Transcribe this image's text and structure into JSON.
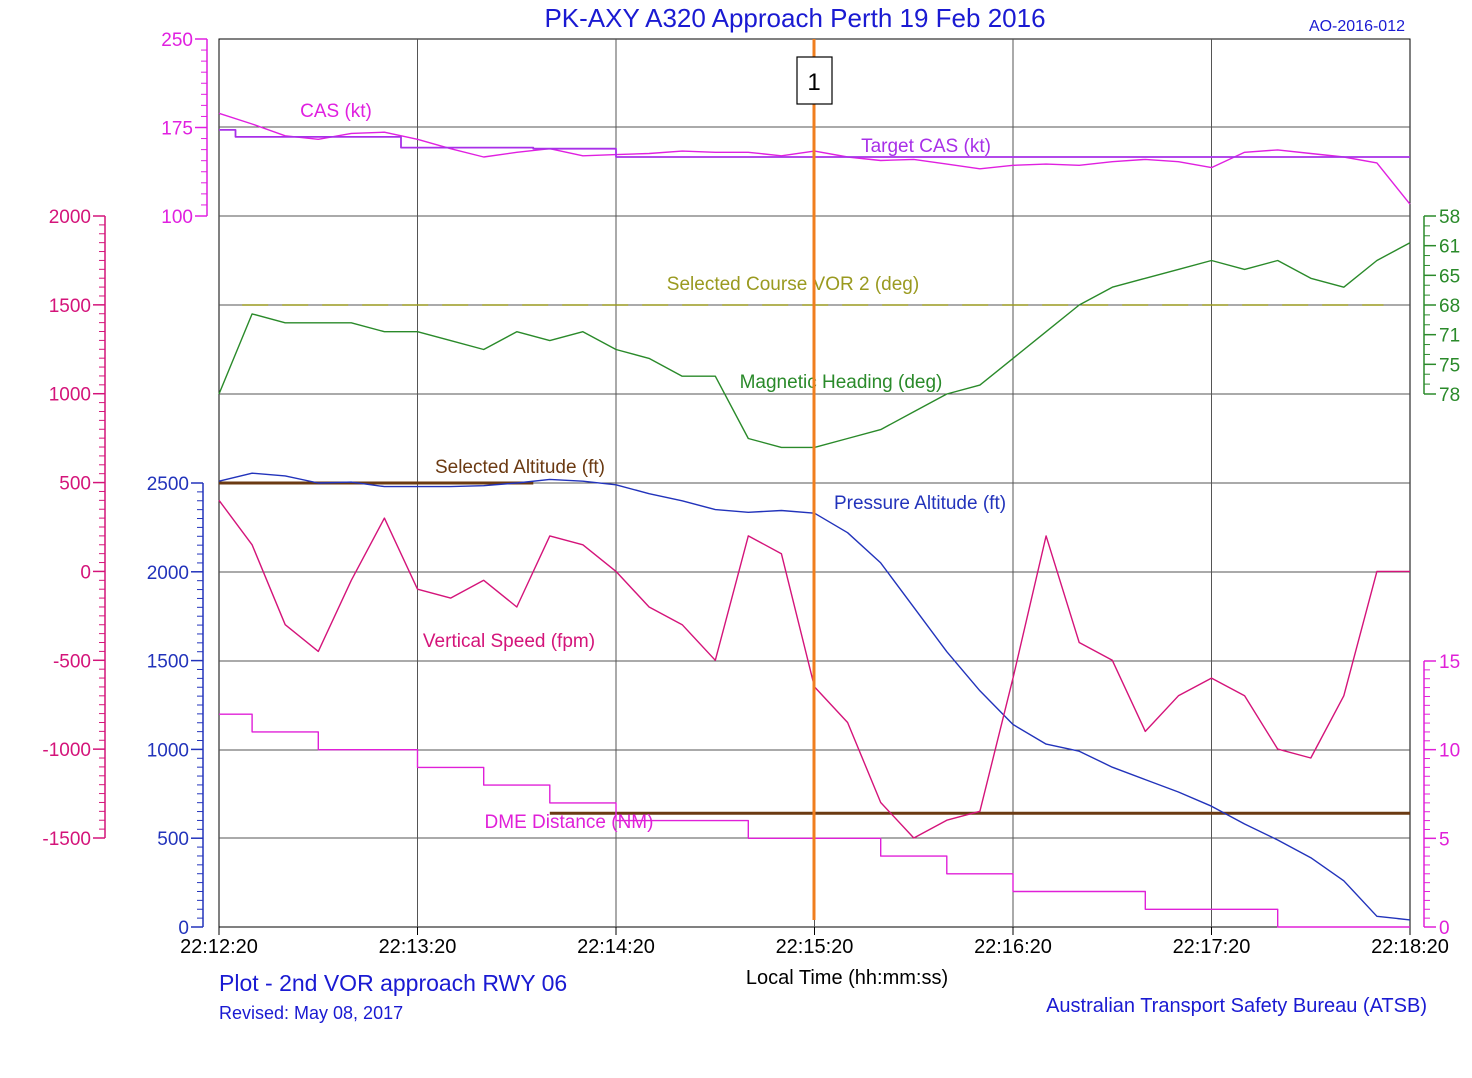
{
  "header": {
    "title": "PK-AXY  A320 Approach Perth 19 Feb 2016",
    "report_id": "AO-2016-012",
    "marker_label": "1"
  },
  "footer": {
    "plot_caption": "Plot - 2nd VOR approach RWY 06",
    "revised": "Revised: May 08, 2017",
    "xaxis_label": "Local Time (hh:mm:ss)",
    "agency": "Australian Transport Safety Bureau (ATSB)"
  },
  "colors": {
    "title_blue": "#1a1ad2",
    "cas": "#e020e0",
    "target_cas": "#a830e8",
    "course": "#9a9a20",
    "heading": "#2a8a2a",
    "sel_alt": "#6b3a12",
    "press_alt": "#2233bb",
    "vs": "#d4147a",
    "dme": "#e020d8",
    "marker": "#f07e1e",
    "grid": "#000000"
  },
  "chart_data": {
    "type": "line",
    "x_ticks": [
      "22:12:20",
      "22:13:20",
      "22:14:20",
      "22:15:20",
      "22:16:20",
      "22:17:20",
      "22:18:20"
    ],
    "xlim": [
      "22:12:20",
      "22:18:20"
    ],
    "marker_time": "22:15:20",
    "axes": {
      "cas": {
        "ticks": [
          "250",
          "175",
          "100"
        ],
        "ylim": [
          100,
          250
        ],
        "color": "#e020e0"
      },
      "vs": {
        "ticks": [
          "2000",
          "1500",
          "1000",
          "500",
          "0",
          "-500",
          "-1000",
          "-1500"
        ],
        "ylim": [
          -1500,
          2000
        ],
        "color": "#d4147a"
      },
      "altitude": {
        "ticks": [
          "2500",
          "2000",
          "1500",
          "1000",
          "500",
          "0"
        ],
        "ylim": [
          0,
          2500
        ],
        "color": "#2233bb"
      },
      "heading": {
        "ticks": [
          "58",
          "61",
          "65",
          "68",
          "71",
          "75",
          "78"
        ],
        "ylim": [
          58,
          78
        ],
        "color": "#2a8a2a"
      },
      "dme": {
        "ticks": [
          "15",
          "10",
          "5",
          "0"
        ],
        "ylim": [
          0,
          15
        ],
        "color": "#e020d8"
      }
    },
    "series": [
      {
        "name": "CAS (kt)",
        "axis": "cas",
        "x": [
          "22:12:20",
          "22:12:30",
          "22:12:40",
          "22:12:50",
          "22:13:00",
          "22:13:10",
          "22:13:20",
          "22:13:30",
          "22:13:40",
          "22:13:50",
          "22:14:00",
          "22:14:10",
          "22:14:20",
          "22:14:30",
          "22:14:40",
          "22:14:50",
          "22:15:00",
          "22:15:10",
          "22:15:20",
          "22:15:30",
          "22:15:40",
          "22:15:50",
          "22:16:00",
          "22:16:10",
          "22:16:20",
          "22:16:30",
          "22:16:40",
          "22:16:50",
          "22:17:00",
          "22:17:10",
          "22:17:20",
          "22:17:30",
          "22:17:40",
          "22:17:50",
          "22:18:00",
          "22:18:10",
          "22:18:20"
        ],
        "values": [
          187,
          178,
          168,
          165,
          170,
          171,
          165,
          157,
          150,
          154,
          157,
          151,
          152,
          153,
          155,
          154,
          154,
          151,
          155,
          150,
          147,
          148,
          144,
          140,
          143,
          144,
          143,
          146,
          148,
          146,
          141,
          154,
          156,
          153,
          150,
          145,
          110
        ]
      },
      {
        "name": "Target CAS (kt)",
        "axis": "cas",
        "step": true,
        "x": [
          "22:12:20",
          "22:12:25",
          "22:12:25",
          "22:13:15",
          "22:13:15",
          "22:13:55",
          "22:13:55",
          "22:14:20",
          "22:14:20",
          "22:18:20"
        ],
        "values": [
          173,
          173,
          167,
          167,
          158,
          158,
          157,
          157,
          150,
          150
        ]
      },
      {
        "name": "Selected Course VOR 2 (deg)",
        "axis": "heading",
        "dashed": true,
        "x": [
          "22:12:27",
          "22:18:12"
        ],
        "values": [
          68,
          68
        ]
      },
      {
        "name": "Magnetic Heading (deg)",
        "axis": "heading",
        "x": [
          "22:12:20",
          "22:12:30",
          "22:12:40",
          "22:12:50",
          "22:13:00",
          "22:13:10",
          "22:13:20",
          "22:13:30",
          "22:13:40",
          "22:13:50",
          "22:14:00",
          "22:14:10",
          "22:14:20",
          "22:14:30",
          "22:14:40",
          "22:14:50",
          "22:15:00",
          "22:15:10",
          "22:15:20",
          "22:15:30",
          "22:15:40",
          "22:15:50",
          "22:16:00",
          "22:16:10",
          "22:16:20",
          "22:16:30",
          "22:16:40",
          "22:16:50",
          "22:17:00",
          "22:17:10",
          "22:17:20",
          "22:17:30",
          "22:17:40",
          "22:17:50",
          "22:18:00",
          "22:18:10",
          "22:18:20"
        ],
        "values": [
          78,
          69,
          70,
          70,
          70,
          71,
          71,
          72,
          73,
          71,
          72,
          71,
          73,
          74,
          76,
          76,
          83,
          84,
          84,
          83,
          82,
          80,
          78,
          77,
          74,
          71,
          68,
          66,
          65,
          64,
          63,
          64,
          63,
          65,
          66,
          63,
          61
        ]
      },
      {
        "name": "Selected Altitude (ft)",
        "axis": "altitude",
        "segments": true,
        "x": [
          "22:12:20",
          "22:13:55"
        ],
        "values": [
          2500,
          2500
        ],
        "x2": [
          "22:14:00",
          "22:18:20"
        ],
        "values2": [
          640,
          640
        ]
      },
      {
        "name": "Pressure Altitude (ft)",
        "axis": "altitude",
        "x": [
          "22:12:20",
          "22:12:30",
          "22:12:40",
          "22:12:50",
          "22:13:00",
          "22:13:10",
          "22:13:20",
          "22:13:30",
          "22:13:40",
          "22:13:50",
          "22:14:00",
          "22:14:10",
          "22:14:20",
          "22:14:30",
          "22:14:40",
          "22:14:50",
          "22:15:00",
          "22:15:10",
          "22:15:20",
          "22:15:30",
          "22:15:40",
          "22:15:50",
          "22:16:00",
          "22:16:10",
          "22:16:20",
          "22:16:30",
          "22:16:40",
          "22:16:50",
          "22:17:00",
          "22:17:10",
          "22:17:20",
          "22:17:30",
          "22:17:40",
          "22:17:50",
          "22:18:00",
          "22:18:10",
          "22:18:20"
        ],
        "values": [
          2510,
          2555,
          2540,
          2500,
          2505,
          2480,
          2480,
          2480,
          2485,
          2500,
          2520,
          2510,
          2490,
          2440,
          2400,
          2350,
          2335,
          2345,
          2330,
          2220,
          2050,
          1800,
          1550,
          1330,
          1140,
          1030,
          990,
          900,
          830,
          760,
          680,
          580,
          490,
          390,
          260,
          60,
          40
        ]
      },
      {
        "name": "Vertical Speed (fpm)",
        "axis": "vs",
        "x": [
          "22:12:20",
          "22:12:30",
          "22:12:40",
          "22:12:50",
          "22:13:00",
          "22:13:10",
          "22:13:20",
          "22:13:30",
          "22:13:40",
          "22:13:50",
          "22:14:00",
          "22:14:10",
          "22:14:20",
          "22:14:30",
          "22:14:40",
          "22:14:50",
          "22:15:00",
          "22:15:10",
          "22:15:20",
          "22:15:30",
          "22:15:40",
          "22:15:50",
          "22:16:00",
          "22:16:10",
          "22:16:20",
          "22:16:30",
          "22:16:40",
          "22:16:50",
          "22:17:00",
          "22:17:10",
          "22:17:20",
          "22:17:30",
          "22:17:40",
          "22:17:50",
          "22:18:00",
          "22:18:10",
          "22:18:20"
        ],
        "values": [
          400,
          150,
          -300,
          -450,
          -50,
          300,
          -100,
          -150,
          -50,
          -200,
          200,
          150,
          0,
          -200,
          -300,
          -500,
          200,
          100,
          -650,
          -850,
          -1300,
          -1500,
          -1400,
          -1350,
          -600,
          200,
          -400,
          -500,
          -900,
          -700,
          -600,
          -700,
          -1000,
          -1050,
          -700,
          0,
          0
        ]
      },
      {
        "name": "DME Distance (NM)",
        "axis": "dme",
        "step": true,
        "x": [
          "22:12:20",
          "22:12:30",
          "22:12:30",
          "22:12:50",
          "22:12:50",
          "22:13:20",
          "22:13:20",
          "22:13:40",
          "22:13:40",
          "22:14:00",
          "22:14:00",
          "22:14:20",
          "22:14:20",
          "22:14:40",
          "22:14:40",
          "22:15:00",
          "22:15:00",
          "22:15:20",
          "22:15:20",
          "22:15:40",
          "22:15:40",
          "22:16:00",
          "22:16:00",
          "22:16:20",
          "22:16:20",
          "22:16:40",
          "22:16:40",
          "22:17:00",
          "22:17:00",
          "22:17:20",
          "22:17:20",
          "22:17:40",
          "22:17:40",
          "22:18:20"
        ],
        "values": [
          12,
          12,
          11,
          11,
          10,
          10,
          9,
          9,
          8,
          8,
          7,
          7,
          6,
          6,
          6,
          6,
          5,
          5,
          5,
          5,
          4,
          4,
          3,
          3,
          2,
          2,
          2,
          2,
          1,
          1,
          1,
          1,
          0,
          0
        ]
      }
    ],
    "annotations": [
      {
        "text": "CAS (kt)",
        "color": "cas"
      },
      {
        "text": "Target CAS (kt)",
        "color": "target_cas"
      },
      {
        "text": "Selected Course VOR 2 (deg)",
        "color": "course"
      },
      {
        "text": "Magnetic Heading (deg)",
        "color": "heading"
      },
      {
        "text": "Selected Altitude (ft)",
        "color": "sel_alt"
      },
      {
        "text": "Pressure Altitude (ft)",
        "color": "press_alt"
      },
      {
        "text": "Vertical Speed (fpm)",
        "color": "vs"
      },
      {
        "text": "DME Distance (NM)",
        "color": "dme"
      }
    ],
    "grid": true
  }
}
